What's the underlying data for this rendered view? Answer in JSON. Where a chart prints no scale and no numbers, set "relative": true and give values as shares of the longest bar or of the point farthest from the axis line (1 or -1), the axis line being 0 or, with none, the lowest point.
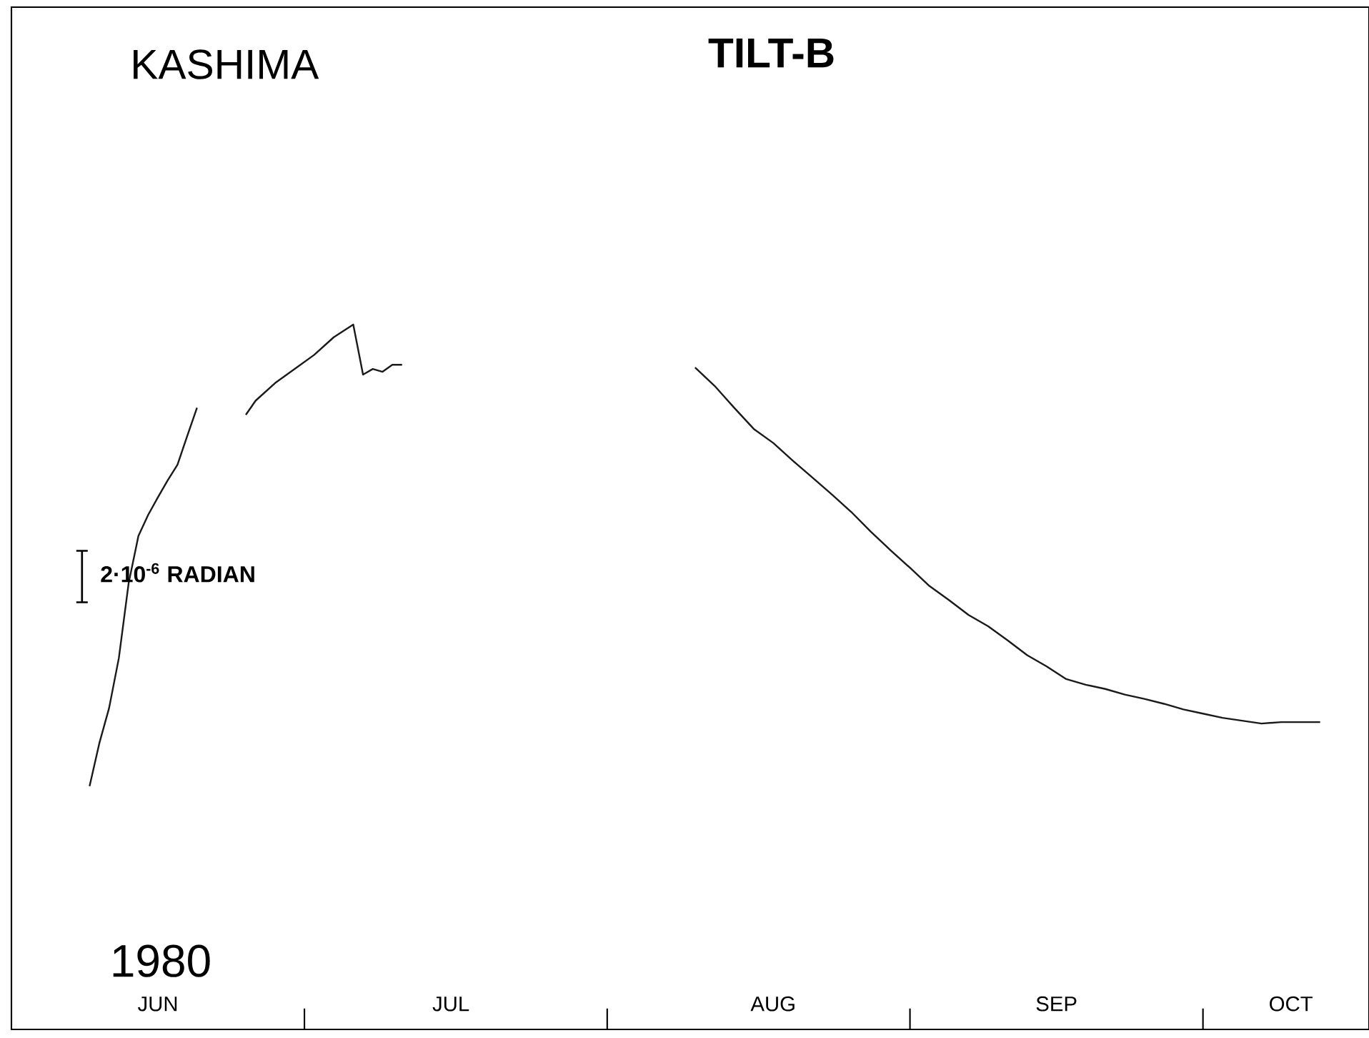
{
  "chart_data": {
    "type": "line",
    "title": "TILT-B",
    "relative": true,
    "annotations": [
      "KASHIMA",
      "1980",
      "2·10$^{-6}$ RADIAN"
    ],
    "xlim": [
      "1980-06-01",
      "1980-10-18"
    ],
    "xticks": [
      {
        "value": "1980-06-16",
        "label": "JUN"
      },
      {
        "value": "1980-07-01",
        "label": null
      },
      {
        "value": "1980-07-16",
        "label": "JUL"
      },
      {
        "value": "1980-08-01",
        "label": null
      },
      {
        "value": "1980-08-18",
        "label": "AUG"
      },
      {
        "value": "1980-09-01",
        "label": null
      },
      {
        "value": "1980-09-16",
        "label": "SEP"
      },
      {
        "value": "1980-10-01",
        "label": null
      },
      {
        "value": "1980-10-10",
        "label": "OCT"
      }
    ],
    "marker": "none",
    "line_style": "solid",
    "series": [
      {
        "color": "#1a1a1a",
        "x": [
          "1980-06-09",
          "1980-06-10",
          "1980-06-11",
          "1980-06-12",
          "1980-06-13",
          "1980-06-14",
          "1980-06-15",
          "1980-06-16",
          "1980-06-17",
          "1980-06-18",
          "1980-06-19",
          "1980-06-20",
          "1980-06-22",
          "1980-06-25",
          "1980-06-26",
          "1980-06-28",
          "1980-06-30",
          "1980-07-02",
          "1980-07-04",
          "1980-07-06",
          "1980-07-07",
          "1980-07-08",
          "1980-07-09",
          "1980-07-10",
          "1980-07-11",
          "1980-07-25",
          "1980-08-10",
          "1980-08-12",
          "1980-08-14",
          "1980-08-16",
          "1980-08-18",
          "1980-08-20",
          "1980-08-22",
          "1980-08-24",
          "1980-08-26",
          "1980-08-28",
          "1980-08-30",
          "1980-09-01",
          "1980-09-03",
          "1980-09-05",
          "1980-09-07",
          "1980-09-09",
          "1980-09-11",
          "1980-09-13",
          "1980-09-15",
          "1980-09-17",
          "1980-09-19",
          "1980-09-21",
          "1980-09-23",
          "1980-09-25",
          "1980-09-27",
          "1980-09-29",
          "1980-10-01",
          "1980-10-03",
          "1980-10-05",
          "1980-10-07",
          "1980-10-09",
          "1980-10-11",
          "1980-10-13"
        ],
        "values": [
          0.345,
          0.406,
          0.456,
          0.527,
          0.633,
          0.7,
          0.73,
          0.755,
          0.779,
          0.801,
          0.842,
          0.882,
          null,
          0.872,
          0.892,
          0.917,
          0.937,
          0.957,
          0.982,
          1,
          0.929,
          0.937,
          0.933,
          0.943,
          0.943,
          null,
          0.939,
          0.913,
          0.882,
          0.852,
          0.832,
          0.807,
          0.783,
          0.759,
          0.734,
          0.706,
          0.68,
          0.655,
          0.629,
          0.609,
          0.588,
          0.572,
          0.552,
          0.531,
          0.515,
          0.497,
          0.489,
          0.483,
          0.475,
          0.469,
          0.462,
          0.454,
          0.448,
          0.442,
          0.438,
          0.434,
          0.436,
          0.436,
          0.436
        ]
      }
    ]
  }
}
